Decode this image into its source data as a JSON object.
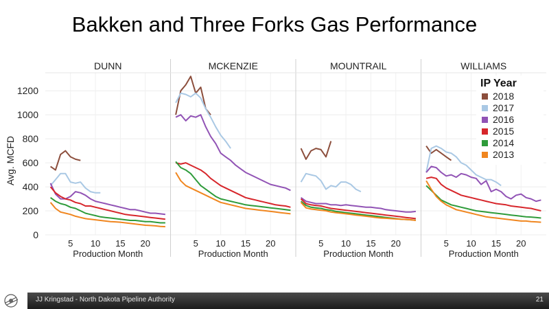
{
  "slide": {
    "title": "Bakken and Three Forks Gas Performance",
    "footer_text": "JJ Kringstad - North Dakota Pipeline Authority",
    "page_number": "21"
  },
  "chart_data": {
    "type": "line",
    "ylabel": "Avg. MCFD",
    "xlabel": "Production Month",
    "ylim": [
      0,
      1350
    ],
    "xlim": [
      0.5,
      24.5
    ],
    "yticks": [
      0,
      200,
      400,
      600,
      800,
      1000,
      1200
    ],
    "xticks": [
      5,
      10,
      15,
      20
    ],
    "legend_title": "IP Year",
    "legend_position": "top-right",
    "colors": {
      "2018": "#8c4e3c",
      "2017": "#a9c8e4",
      "2016": "#9153b5",
      "2015": "#d7262b",
      "2014": "#2e9b3a",
      "2013": "#f0861f"
    },
    "series_order": [
      "2018",
      "2017",
      "2016",
      "2015",
      "2014",
      "2013"
    ],
    "panels": [
      {
        "name": "DUNN",
        "series": {
          "2018": [
            570,
            540,
            670,
            700,
            650,
            630,
            620
          ],
          "2017": [
            410,
            460,
            510,
            510,
            440,
            430,
            440,
            390,
            360,
            350,
            350
          ],
          "2016": [
            430,
            340,
            300,
            300,
            320,
            360,
            350,
            330,
            300,
            280,
            270,
            260,
            250,
            240,
            230,
            220,
            210,
            210,
            200,
            190,
            180,
            180,
            175,
            170
          ],
          "2015": [
            400,
            350,
            320,
            300,
            290,
            270,
            260,
            240,
            240,
            230,
            220,
            210,
            200,
            190,
            180,
            170,
            165,
            160,
            155,
            150,
            145,
            140,
            135,
            130
          ],
          "2014": [
            310,
            280,
            260,
            250,
            230,
            220,
            200,
            180,
            170,
            160,
            150,
            145,
            140,
            135,
            130,
            125,
            120,
            120,
            115,
            110,
            110,
            105,
            100,
            100
          ],
          "2013": [
            270,
            220,
            190,
            180,
            170,
            155,
            145,
            135,
            130,
            125,
            120,
            115,
            110,
            108,
            105,
            100,
            95,
            90,
            85,
            80,
            78,
            75,
            70,
            68
          ]
        }
      },
      {
        "name": "MCKENZIE",
        "series": {
          "2018": [
            1000,
            1200,
            1250,
            1320,
            1180,
            1230,
            1050,
            1000
          ],
          "2017": [
            1100,
            1180,
            1170,
            1150,
            1180,
            1140,
            1050,
            980,
            900,
            830,
            780,
            720
          ],
          "2016": [
            980,
            1000,
            950,
            990,
            980,
            1000,
            900,
            820,
            760,
            680,
            650,
            620,
            580,
            550,
            520,
            500,
            480,
            460,
            440,
            420,
            410,
            400,
            390,
            370
          ],
          "2015": [
            600,
            590,
            600,
            580,
            560,
            540,
            510,
            470,
            440,
            410,
            390,
            370,
            350,
            330,
            310,
            300,
            290,
            280,
            270,
            260,
            250,
            245,
            240,
            230
          ],
          "2014": [
            610,
            560,
            540,
            510,
            460,
            410,
            380,
            350,
            320,
            300,
            290,
            280,
            270,
            260,
            250,
            245,
            240,
            235,
            230,
            225,
            220,
            215,
            210,
            205
          ],
          "2013": [
            520,
            450,
            410,
            390,
            370,
            350,
            330,
            310,
            290,
            270,
            260,
            250,
            240,
            230,
            220,
            215,
            210,
            205,
            200,
            195,
            190,
            185,
            180,
            175
          ]
        }
      },
      {
        "name": "MOUNTRAIL",
        "series": {
          "2018": [
            720,
            630,
            700,
            720,
            710,
            650,
            780
          ],
          "2017": [
            440,
            510,
            500,
            490,
            450,
            380,
            410,
            400,
            440,
            440,
            420,
            380,
            360
          ],
          "2016": [
            310,
            280,
            270,
            260,
            260,
            260,
            250,
            250,
            245,
            250,
            245,
            240,
            235,
            230,
            230,
            225,
            220,
            210,
            205,
            200,
            195,
            190,
            190,
            195
          ],
          "2015": [
            300,
            260,
            250,
            245,
            240,
            230,
            220,
            215,
            210,
            205,
            200,
            195,
            190,
            185,
            180,
            175,
            170,
            165,
            160,
            155,
            150,
            145,
            140,
            135
          ],
          "2014": [
            280,
            245,
            230,
            225,
            220,
            210,
            205,
            195,
            190,
            185,
            180,
            175,
            170,
            165,
            160,
            155,
            150,
            145,
            140,
            135,
            130,
            128,
            125,
            122
          ],
          "2013": [
            270,
            225,
            215,
            210,
            205,
            200,
            190,
            185,
            180,
            175,
            170,
            165,
            160,
            155,
            150,
            145,
            140,
            138,
            135,
            132,
            130,
            128,
            125,
            120
          ]
        }
      },
      {
        "name": "WILLIAMS",
        "series": {
          "2018": [
            740,
            680,
            710,
            680,
            650,
            620
          ],
          "2017": [
            520,
            720,
            740,
            720,
            690,
            680,
            650,
            600,
            580,
            540,
            500,
            480,
            460,
            460,
            440,
            410
          ],
          "2016": [
            520,
            570,
            560,
            520,
            490,
            500,
            480,
            510,
            500,
            480,
            470,
            420,
            450,
            360,
            380,
            360,
            320,
            300,
            330,
            340,
            310,
            300,
            280,
            290
          ],
          "2015": [
            470,
            480,
            470,
            420,
            390,
            370,
            350,
            330,
            320,
            310,
            300,
            290,
            280,
            270,
            260,
            255,
            250,
            240,
            235,
            230,
            225,
            220,
            210,
            200
          ],
          "2014": [
            410,
            370,
            330,
            290,
            270,
            250,
            240,
            230,
            220,
            210,
            200,
            195,
            190,
            185,
            180,
            175,
            170,
            165,
            160,
            155,
            150,
            148,
            145,
            140
          ],
          "2013": [
            450,
            380,
            320,
            280,
            250,
            230,
            210,
            200,
            190,
            180,
            170,
            160,
            150,
            145,
            140,
            135,
            130,
            125,
            120,
            115,
            115,
            110,
            108,
            105
          ]
        }
      }
    ]
  }
}
